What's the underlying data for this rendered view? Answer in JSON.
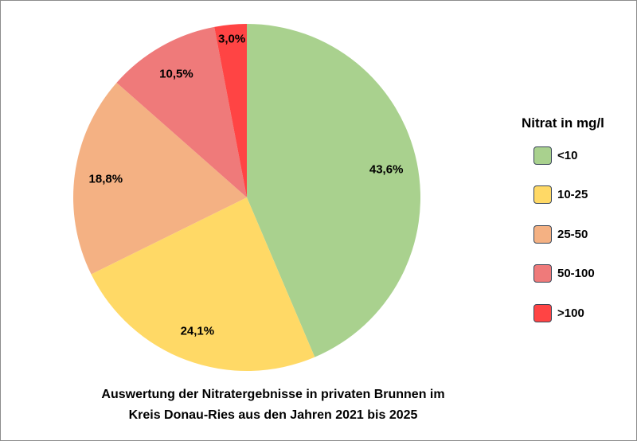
{
  "chart_data": {
    "type": "pie",
    "title": [
      "Auswertung der Nitratergebnisse in privaten Brunnen im",
      "Kreis Donau-Ries aus den Jahren 2021 bis 2025"
    ],
    "legend_title": "Nitrat in mg/l",
    "legend_position": "right",
    "categories": [
      "<10",
      "10-25",
      "25-50",
      "50-100",
      ">100"
    ],
    "values": [
      43.6,
      24.1,
      18.8,
      10.5,
      3.0
    ],
    "labels": [
      "43,6%",
      "24,1%",
      "18,8%",
      "10,5%",
      "3,0%"
    ],
    "colors": [
      "#a9d18e",
      "#ffd966",
      "#f4b183",
      "#ef7a7a",
      "#ff4444"
    ]
  }
}
